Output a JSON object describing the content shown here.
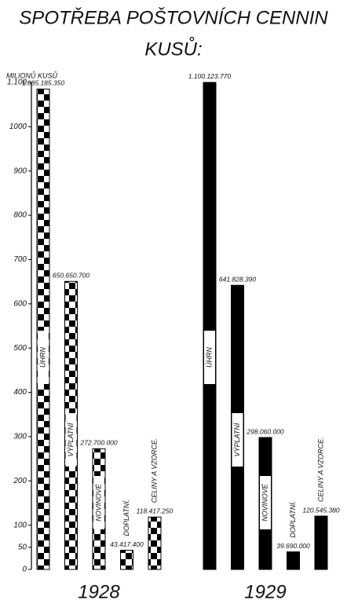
{
  "chart_data": {
    "type": "bar",
    "title": "SPOTŘEBA POŠTOVNÍCH CENNIN",
    "subtitle": "KUSŮ:",
    "y_label": "MILIONŮ KUSŮ",
    "categories": [
      "1928",
      "1929"
    ],
    "category_fills": [
      "checkered",
      "solid"
    ],
    "series": [
      {
        "name": "ÚHRN",
        "color": "#000000",
        "values": [
          1085.18535,
          1100.12377
        ],
        "value_labels": [
          "1.085.185.350",
          "1.100.123.770"
        ]
      },
      {
        "name": "VÝPLATNÍ",
        "color": "#000000",
        "values": [
          650.6507,
          641.82839
        ],
        "value_labels": [
          "650.650.700",
          "641.828.390"
        ]
      },
      {
        "name": "NOVINOVÉ",
        "color": "#000000",
        "values": [
          272.7,
          298.06
        ],
        "value_labels": [
          "272.700.000",
          "298.060.000"
        ]
      },
      {
        "name": "DOPLATNÍ.",
        "color": "#000000",
        "values": [
          43.4174,
          39.69
        ],
        "value_labels": [
          "43.417.400",
          "39.690.000"
        ]
      },
      {
        "name": "CELINY A VZORCE.",
        "color": "#000000",
        "values": [
          118.41725,
          120.54538
        ],
        "value_labels": [
          "118.417.250",
          "120.545.380"
        ]
      }
    ],
    "ylim": [
      0,
      1100
    ],
    "yticks": [
      0,
      50,
      100,
      200,
      300,
      400,
      500,
      600,
      700,
      800,
      900,
      1000,
      {
        "value": 1100,
        "label": "1.100"
      }
    ]
  }
}
